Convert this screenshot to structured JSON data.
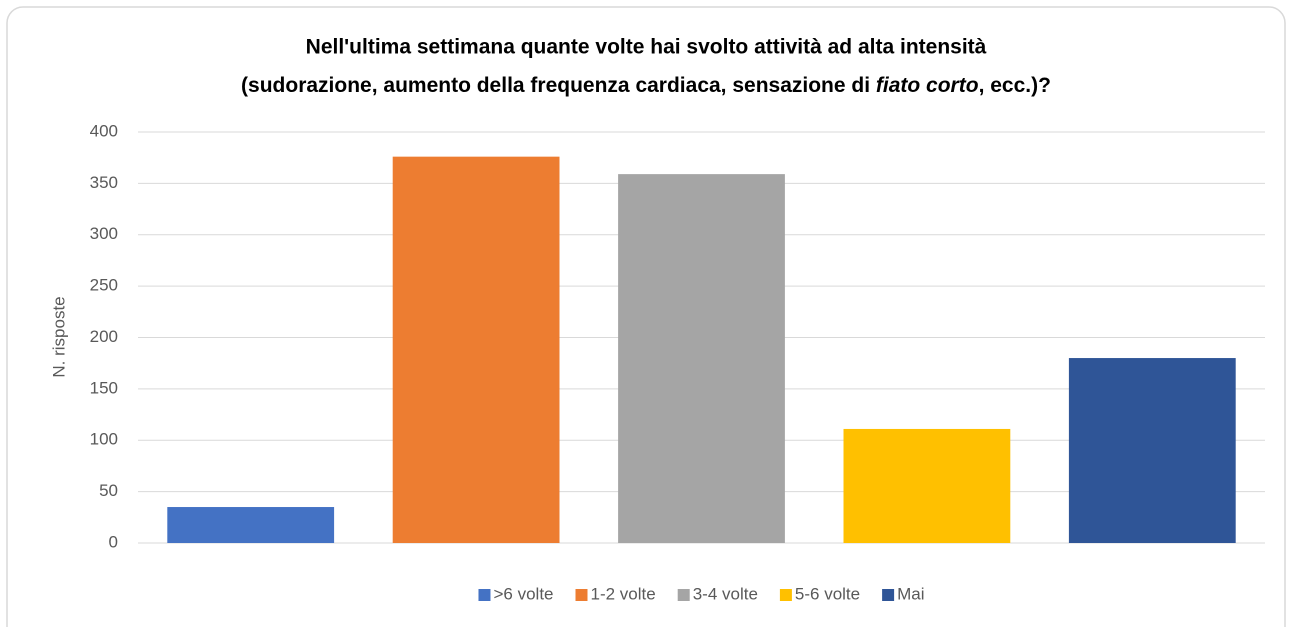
{
  "chart_data": {
    "type": "bar",
    "title": [
      "Nell'ultima settimana quante volte hai svolto attività ad alta intensità",
      "(sudorazione, aumento della frequenza cardiaca, sensazione di ",
      "fiato corto",
      ", ecc.)?"
    ],
    "y_label": "N. risposte",
    "categories": [
      ">6 volte",
      "1-2 volte",
      "3-4 volte",
      "5-6 volte",
      "Mai"
    ],
    "values": [
      35,
      376,
      359,
      111,
      180
    ],
    "colors": [
      "#4472c4",
      "#ed7d31",
      "#a5a5a5",
      "#ffc000",
      "#2f5597"
    ],
    "ylim": [
      0,
      400
    ],
    "yticks": [
      0,
      50,
      100,
      150,
      200,
      250,
      300,
      350,
      400
    ],
    "grid": true,
    "legend": "bottom"
  }
}
